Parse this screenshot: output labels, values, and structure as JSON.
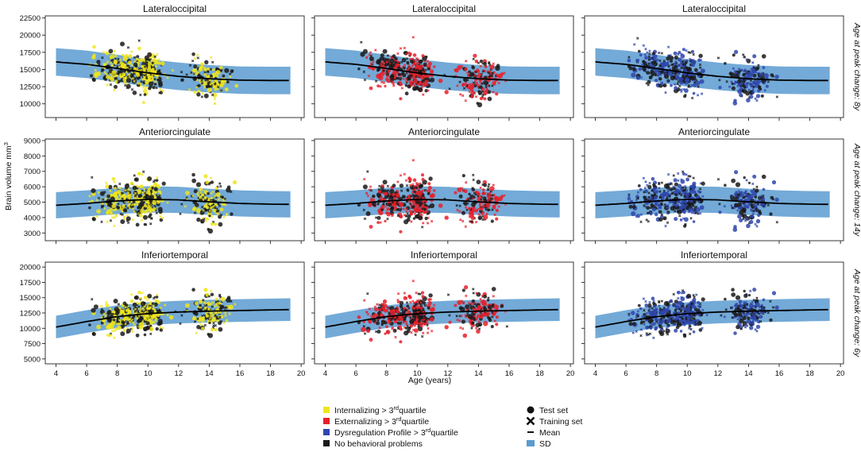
{
  "figure": {
    "ylabel": "Brain volume mm",
    "ylabel_sup": "3",
    "xlabel": "Age (years)"
  },
  "colors": {
    "internalizing": "#f0e51a",
    "externalizing": "#e8202a",
    "dysregulation": "#2f46ad",
    "no_problems": "#1a1a1a",
    "sd_band": "#5a9bd0",
    "mean_line": "#000000"
  },
  "legend": {
    "groups": [
      {
        "key": "internalizing",
        "label": "Internalizing > 3",
        "sup": "rd",
        "suffix": "quartile"
      },
      {
        "key": "externalizing",
        "label": "Externalizing > 3",
        "sup": "rd",
        "suffix": "quartile"
      },
      {
        "key": "dysregulation",
        "label": "Dysregulation Profile > 3",
        "sup": "rd",
        "suffix": "quartile"
      },
      {
        "key": "no_problems",
        "label": "No behavioral problems",
        "sup": "",
        "suffix": ""
      }
    ],
    "markers": [
      {
        "icon": "circle-marker-icon",
        "label": "Test set"
      },
      {
        "icon": "cross-marker-icon",
        "label": "Training set"
      },
      {
        "icon": "line-marker-icon",
        "label": "Mean"
      },
      {
        "icon": "band-swatch-icon",
        "label": "SD"
      }
    ]
  },
  "chart_data": [
    {
      "type": "scatter",
      "row_label": "Age at peak change: 8y",
      "title": "Lateraloccipital",
      "xlim": [
        3.3,
        20.2
      ],
      "ylim": [
        8000,
        22800
      ],
      "xticks": [
        4,
        6,
        8,
        10,
        12,
        14,
        16,
        18,
        20
      ],
      "yticks": [
        10000,
        12500,
        15000,
        17500,
        20000,
        22500
      ],
      "mean": {
        "x": [
          4,
          6,
          8,
          10,
          12,
          14,
          16,
          18,
          19.3
        ],
        "y": [
          16100,
          15750,
          15150,
          14500,
          14000,
          13650,
          13450,
          13400,
          13400
        ]
      },
      "sd": 2000,
      "age_clusters": [
        {
          "center": 8.3,
          "spread": 1.3
        },
        {
          "center": 10.0,
          "spread": 0.6
        },
        {
          "center": 14.0,
          "spread": 0.9
        }
      ],
      "scatter_sd": 1800,
      "panels_highlight": [
        "internalizing",
        "externalizing",
        "dysregulation"
      ]
    },
    {
      "type": "scatter",
      "row_label": "Age at peak change: 14y",
      "title": "Anteriorcingulate",
      "xlim": [
        3.3,
        20.2
      ],
      "ylim": [
        2500,
        9100
      ],
      "xticks": [
        4,
        6,
        8,
        10,
        12,
        14,
        16,
        18,
        20
      ],
      "yticks": [
        3000,
        4000,
        5000,
        6000,
        7000,
        8000,
        9000
      ],
      "mean": {
        "x": [
          4,
          6,
          8,
          10,
          12,
          14,
          16,
          18,
          19.3
        ],
        "y": [
          4800,
          4920,
          5080,
          5180,
          5150,
          5020,
          4920,
          4870,
          4860
        ]
      },
      "sd": 850,
      "age_clusters": [
        {
          "center": 8.3,
          "spread": 1.3
        },
        {
          "center": 10.0,
          "spread": 0.6
        },
        {
          "center": 14.0,
          "spread": 0.9
        }
      ],
      "scatter_sd": 900,
      "panels_highlight": [
        "internalizing",
        "externalizing",
        "dysregulation"
      ]
    },
    {
      "type": "scatter",
      "row_label": "Age at peak change: 6y",
      "title": "Inferiortemporal",
      "xlim": [
        3.3,
        20.2
      ],
      "ylim": [
        4200,
        20800
      ],
      "xticks": [
        4,
        6,
        8,
        10,
        12,
        14,
        16,
        18,
        20
      ],
      "yticks": [
        5000,
        7500,
        10000,
        12500,
        15000,
        17500,
        20000
      ],
      "mean": {
        "x": [
          4,
          6,
          8,
          10,
          12,
          14,
          16,
          18,
          19.3
        ],
        "y": [
          10200,
          11100,
          11900,
          12400,
          12650,
          12800,
          12900,
          13000,
          13050
        ]
      },
      "sd": 1850,
      "age_clusters": [
        {
          "center": 8.3,
          "spread": 1.3
        },
        {
          "center": 10.0,
          "spread": 0.6
        },
        {
          "center": 14.0,
          "spread": 0.9
        }
      ],
      "scatter_sd": 1900,
      "panels_highlight": [
        "internalizing",
        "externalizing",
        "dysregulation"
      ]
    }
  ]
}
